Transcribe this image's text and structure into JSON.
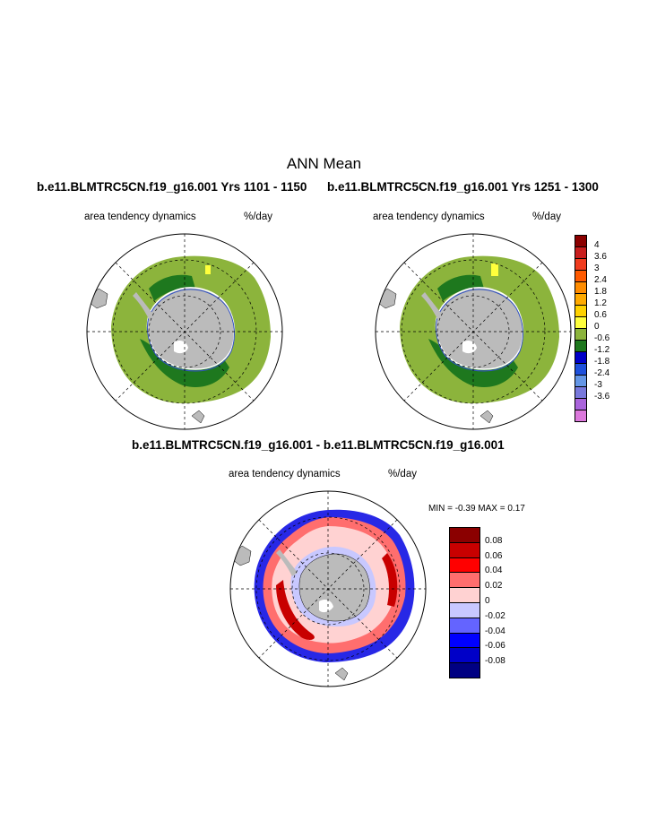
{
  "title": "ANN Mean",
  "panels": [
    {
      "case": "b.e11.BLMTRC5CN.f19_g16.001  Yrs 1101 - 1150",
      "left_label": "area tendency dynamics",
      "right_label": "%/day"
    },
    {
      "case": "b.e11.BLMTRC5CN.f19_g16.001  Yrs 1251 - 1300",
      "left_label": "area tendency dynamics",
      "right_label": "%/day"
    }
  ],
  "diff": {
    "case": "b.e11.BLMTRC5CN.f19_g16.001 - b.e11.BLMTRC5CN.f19_g16.001",
    "left_label": "area tendency dynamics",
    "right_label": "%/day",
    "stats": "MIN =  -0.39 MAX =   0.17"
  },
  "colorbar_main": {
    "labels": [
      "4",
      "3.6",
      "3",
      "2.4",
      "1.8",
      "1.2",
      "0.6",
      "0",
      "-0.6",
      "-1.2",
      "-1.8",
      "-2.4",
      "-3",
      "-3.6"
    ],
    "colors": [
      "#8b0000",
      "#c81e1e",
      "#f03c1e",
      "#ff5a00",
      "#ff8c00",
      "#ffaa00",
      "#ffd200",
      "#ffff3c",
      "#8cb43c",
      "#1e781e",
      "#0000c8",
      "#1e50dc",
      "#6496e6",
      "#7878dc",
      "#aa64dc",
      "#dc78dc"
    ]
  },
  "colorbar_diff": {
    "labels": [
      "0.08",
      "0.06",
      "0.04",
      "0.02",
      "0",
      "-0.02",
      "-0.04",
      "-0.06",
      "-0.08"
    ],
    "colors": [
      "#8b0000",
      "#c80000",
      "#ff0000",
      "#ff6e6e",
      "#ffd2d2",
      "#c8c8ff",
      "#6464ff",
      "#0000ff",
      "#0000c8",
      "#000082"
    ]
  }
}
